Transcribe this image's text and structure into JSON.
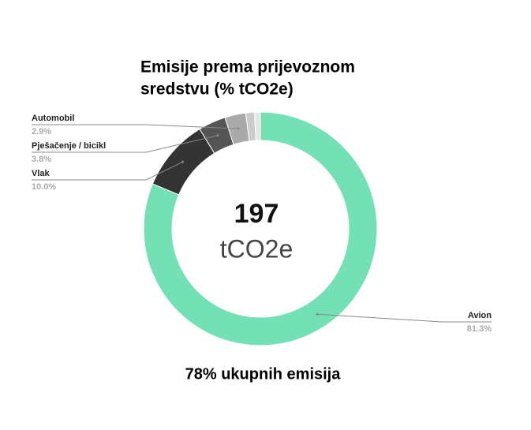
{
  "chart_data": {
    "type": "donut",
    "title": "Emisije prema prijevoznom sredstvu (% tCO2e)",
    "categories": [
      "Avion",
      "Vlak",
      "Pješačenje / bicikl",
      "Automobil",
      null,
      null
    ],
    "values": [
      81.3,
      10.0,
      3.8,
      2.9,
      1.2,
      0.8
    ],
    "value_labels": [
      "81.3%",
      "10.0%",
      "3.8%",
      "2.9%",
      null,
      null
    ],
    "colors": [
      "#74e0b5",
      "#333333",
      "#555555",
      "#aaaaaa",
      "#cccccc",
      "#e6e6e6"
    ],
    "center_value": 197,
    "center_unit": "tCO2e",
    "footnote": "78% ukupnih emisija"
  }
}
